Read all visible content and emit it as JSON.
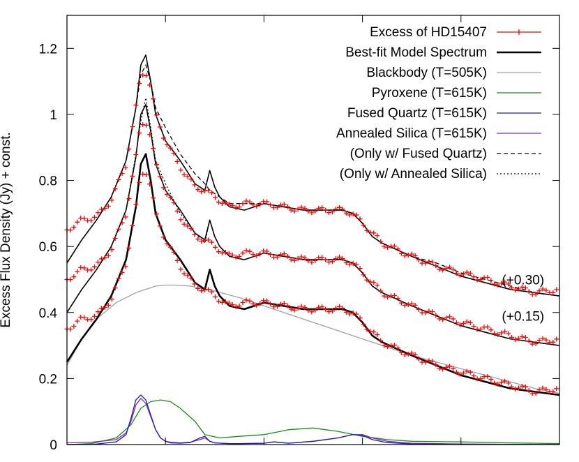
{
  "chart_data": {
    "type": "line",
    "title": "",
    "xlabel": "",
    "ylabel": "Excess Flux Density (Jy) + const.",
    "xlim": [
      0,
      100
    ],
    "ylim": [
      0,
      1.3
    ],
    "yticks": [
      0,
      0.2,
      0.4,
      0.6,
      0.8,
      1,
      1.2
    ],
    "ytick_labels": [
      "0",
      "0.2",
      "0.4",
      "0.6",
      "0.8",
      "1",
      "1.2"
    ],
    "xticks": [
      0,
      20,
      40,
      60,
      80,
      100
    ],
    "grid": false,
    "legend_position": "top-right",
    "legend": [
      {
        "label": "Excess of HD15407",
        "color": "#ff0000",
        "style": "points"
      },
      {
        "label": "Best-fit Model Spectrum",
        "color": "#000000",
        "style": "solid-thick"
      },
      {
        "label": "Blackbody (T=505K)",
        "color": "#a0a0a0",
        "style": "solid"
      },
      {
        "label": "Pyroxene (T=615K)",
        "color": "#1a8a1a",
        "style": "solid"
      },
      {
        "label": "Fused Quartz (T=615K)",
        "color": "#1a1acc",
        "style": "solid"
      },
      {
        "label": "Annealed Silica (T=615K)",
        "color": "#8a2a9a",
        "style": "solid"
      },
      {
        "label": "(Only w/ Fused Quartz)",
        "color": "#000000",
        "style": "dashed"
      },
      {
        "label": "(Only w/ Annealed Silica)",
        "color": "#000000",
        "style": "dotted"
      }
    ],
    "annotations": [
      {
        "text": "(+0.30)",
        "x": 90,
        "y": 0.5
      },
      {
        "text": "(+0.15)",
        "x": 90,
        "y": 0.39
      }
    ],
    "offsets": [
      0,
      0.15,
      0.3
    ],
    "series": [
      {
        "name": "Best-fit Model Spectrum",
        "x": [
          0,
          3,
          6,
          9,
          12,
          14,
          15,
          16,
          17,
          18,
          20,
          23,
          26,
          28,
          29,
          30,
          31,
          33,
          36,
          40,
          44,
          48,
          53,
          56,
          58,
          60,
          62,
          64,
          67,
          70,
          75,
          80,
          85,
          90,
          95,
          100
        ],
        "values": [
          0.25,
          0.32,
          0.38,
          0.45,
          0.56,
          0.72,
          0.85,
          0.88,
          0.8,
          0.7,
          0.62,
          0.56,
          0.49,
          0.47,
          0.53,
          0.48,
          0.45,
          0.42,
          0.41,
          0.43,
          0.42,
          0.41,
          0.41,
          0.41,
          0.4,
          0.37,
          0.33,
          0.31,
          0.29,
          0.27,
          0.24,
          0.21,
          0.19,
          0.17,
          0.16,
          0.15
        ]
      },
      {
        "name": "Blackbody (T=505K)",
        "x": [
          0,
          3,
          6,
          10,
          14,
          18,
          20,
          22,
          25,
          30,
          35,
          40,
          45,
          50,
          55,
          60,
          65,
          70,
          75,
          80,
          85,
          90,
          95,
          100
        ],
        "values": [
          0.24,
          0.32,
          0.38,
          0.43,
          0.46,
          0.48,
          0.483,
          0.483,
          0.48,
          0.465,
          0.445,
          0.42,
          0.395,
          0.37,
          0.345,
          0.32,
          0.295,
          0.27,
          0.25,
          0.23,
          0.21,
          0.19,
          0.17,
          0.155
        ]
      },
      {
        "name": "Excess of HD15407",
        "x": [
          0,
          3,
          6,
          9,
          12,
          14,
          15,
          16,
          17,
          18,
          20,
          23,
          26,
          28,
          29,
          30,
          31,
          33,
          36,
          40,
          44,
          48,
          53,
          56,
          58,
          60,
          62,
          64,
          67,
          70,
          75,
          80,
          85,
          90,
          95,
          100
        ],
        "values": [
          0.35,
          0.38,
          0.39,
          0.44,
          0.55,
          0.72,
          0.82,
          0.83,
          0.78,
          0.7,
          0.62,
          0.54,
          0.48,
          0.47,
          0.46,
          0.45,
          0.44,
          0.42,
          0.43,
          0.43,
          0.42,
          0.41,
          0.41,
          0.41,
          0.4,
          0.37,
          0.34,
          0.31,
          0.29,
          0.27,
          0.24,
          0.22,
          0.2,
          0.18,
          0.16,
          0.17
        ]
      },
      {
        "name": "Pyroxene (T=615K)",
        "x": [
          0,
          5,
          10,
          13,
          15,
          17,
          19,
          21,
          23,
          26,
          28,
          31,
          35,
          40,
          45,
          50,
          55,
          60,
          65,
          70,
          80,
          90,
          100
        ],
        "values": [
          0.0,
          0.003,
          0.02,
          0.06,
          0.11,
          0.13,
          0.135,
          0.13,
          0.11,
          0.07,
          0.03,
          0.02,
          0.025,
          0.03,
          0.045,
          0.05,
          0.04,
          0.025,
          0.015,
          0.01,
          0.008,
          0.005,
          0.003
        ]
      },
      {
        "name": "Fused Quartz (T=615K)",
        "x": [
          0,
          5,
          10,
          12,
          13,
          14,
          15,
          16,
          17,
          18,
          19,
          20,
          21,
          23,
          25,
          27,
          28,
          29,
          30,
          33,
          35,
          40,
          42,
          45,
          50,
          55,
          58,
          60,
          62,
          65,
          70,
          80,
          90,
          100
        ],
        "values": [
          0.0,
          0.0,
          0.008,
          0.03,
          0.08,
          0.135,
          0.15,
          0.135,
          0.09,
          0.045,
          0.02,
          0.01,
          0.005,
          0.004,
          0.006,
          0.02,
          0.025,
          0.01,
          0.005,
          0.003,
          0.003,
          0.004,
          0.008,
          0.004,
          0.01,
          0.02,
          0.03,
          0.028,
          0.015,
          0.006,
          0.002,
          0.0,
          0.0,
          0.0
        ]
      },
      {
        "name": "Annealed Silica (T=615K)",
        "x": [
          0,
          5,
          10,
          12,
          13,
          14,
          15,
          16,
          17,
          18,
          19,
          20,
          21,
          23,
          25,
          27,
          28,
          29,
          30,
          33,
          35,
          40,
          42,
          45,
          50,
          55,
          58,
          60,
          62,
          65,
          70,
          80,
          90,
          100
        ],
        "values": [
          0.005,
          0.007,
          0.015,
          0.035,
          0.07,
          0.12,
          0.14,
          0.125,
          0.085,
          0.045,
          0.02,
          0.01,
          0.007,
          0.005,
          0.007,
          0.015,
          0.02,
          0.01,
          0.005,
          0.003,
          0.003,
          0.004,
          0.008,
          0.004,
          0.01,
          0.02,
          0.03,
          0.03,
          0.02,
          0.01,
          0.004,
          0.002,
          0.001,
          0.0
        ]
      },
      {
        "name": "(Only w/ Fused Quartz)",
        "x": [
          0,
          3,
          6,
          9,
          12,
          14,
          15,
          16,
          17,
          18,
          20,
          23,
          26,
          28,
          29,
          30,
          31,
          33,
          36,
          40,
          44,
          48,
          53,
          56,
          58,
          60,
          62,
          64,
          67,
          70,
          75,
          80,
          85,
          90,
          95,
          100
        ],
        "values": [
          0.55,
          0.62,
          0.68,
          0.75,
          0.86,
          1.02,
          1.12,
          1.15,
          1.1,
          1.02,
          0.96,
          0.88,
          0.82,
          0.79,
          0.77,
          0.76,
          0.75,
          0.73,
          0.73,
          0.73,
          0.72,
          0.71,
          0.71,
          0.71,
          0.7,
          0.67,
          0.63,
          0.61,
          0.59,
          0.57,
          0.55,
          0.52,
          0.5,
          0.48,
          0.46,
          0.45
        ]
      },
      {
        "name": "(Only w/ Annealed Silica)",
        "x": [
          0,
          3,
          6,
          9,
          12,
          14,
          15,
          16,
          17,
          18,
          20,
          23,
          26,
          28,
          29,
          30,
          31,
          33,
          36,
          40,
          44,
          48,
          53,
          56,
          58,
          60,
          62,
          64,
          67,
          70,
          75,
          80,
          85,
          90,
          95,
          100
        ],
        "values": [
          0.4,
          0.47,
          0.53,
          0.6,
          0.71,
          0.88,
          0.98,
          1.05,
          0.96,
          0.86,
          0.79,
          0.7,
          0.64,
          0.61,
          0.68,
          0.63,
          0.6,
          0.57,
          0.56,
          0.58,
          0.57,
          0.56,
          0.56,
          0.56,
          0.55,
          0.52,
          0.48,
          0.46,
          0.44,
          0.42,
          0.39,
          0.36,
          0.34,
          0.32,
          0.31,
          0.3
        ]
      }
    ]
  }
}
